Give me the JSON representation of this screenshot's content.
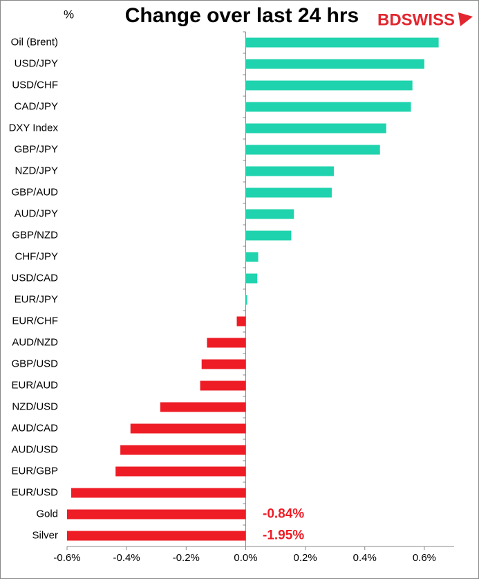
{
  "chart_data": {
    "type": "hbar",
    "title": "Change over last 24 hrs",
    "unit_label": "%",
    "logo": "BDSWISS",
    "categories": [
      "Oil (Brent)",
      "USD/JPY",
      "USD/CHF",
      "CAD/JPY",
      "DXY Index",
      "GBP/JPY",
      "NZD/JPY",
      "GBP/AUD",
      "AUD/JPY",
      "GBP/NZD",
      "CHF/JPY",
      "USD/CAD",
      "EUR/JPY",
      "EUR/CHF",
      "AUD/NZD",
      "GBP/USD",
      "EUR/AUD",
      "NZD/USD",
      "AUD/CAD",
      "AUD/USD",
      "EUR/GBP",
      "EUR/USD",
      "Gold",
      "Silver"
    ],
    "values": [
      0.648,
      0.6,
      0.56,
      0.555,
      0.472,
      0.451,
      0.296,
      0.289,
      0.162,
      0.153,
      0.042,
      0.039,
      0.005,
      -0.03,
      -0.13,
      -0.148,
      -0.153,
      -0.287,
      -0.387,
      -0.421,
      -0.437,
      -0.586,
      -0.84,
      -1.95
    ],
    "value_labels": [
      null,
      null,
      null,
      null,
      null,
      null,
      null,
      null,
      null,
      null,
      null,
      null,
      null,
      null,
      null,
      null,
      null,
      null,
      null,
      null,
      null,
      null,
      "-0.84%",
      "-1.95%"
    ],
    "positive_color": "#1ed3ad",
    "negative_color": "#ee1c25",
    "xlim": [
      -0.6,
      0.7
    ],
    "xticks": [
      {
        "value": -0.6,
        "label": "-0.6%"
      },
      {
        "value": -0.4,
        "label": "-0.4%"
      },
      {
        "value": -0.2,
        "label": "-0.2%"
      },
      {
        "value": 0,
        "label": "0.0%"
      },
      {
        "value": 0.2,
        "label": "0.2%"
      },
      {
        "value": 0.4,
        "label": "0.4%"
      },
      {
        "value": 0.6,
        "label": "0.6%"
      }
    ],
    "grid": false
  }
}
